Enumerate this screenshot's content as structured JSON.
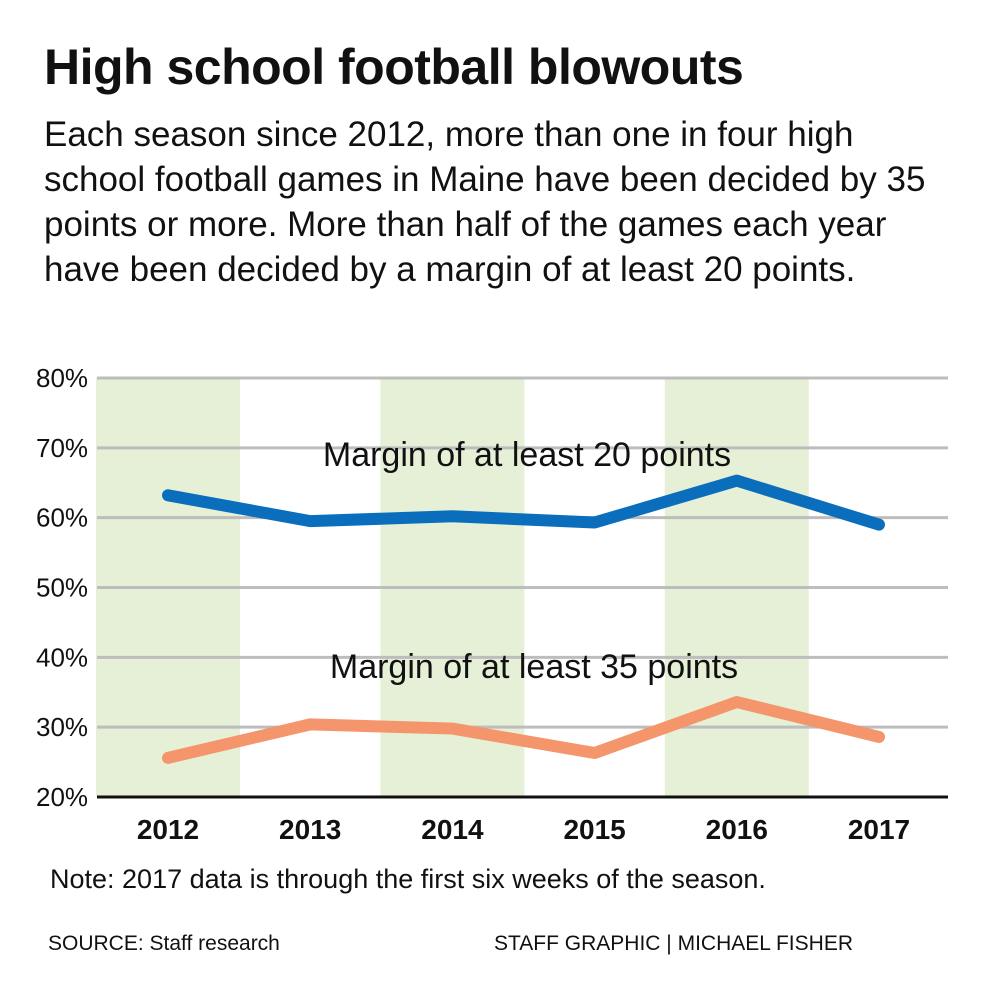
{
  "header": {
    "title": "High school football blowouts",
    "subtitle": "Each season since 2012, more than one in four high school football games in Maine have been decided by 35 points or more. More than half of the games each year have been decided by a margin of at least 20 points."
  },
  "footer": {
    "note": "Note: 2017 data is through the first six weeks of the season.",
    "source": "SOURCE: Staff research",
    "credit": "STAFF GRAPHIC | MICHAEL FISHER"
  },
  "chart_data": {
    "type": "line",
    "categories": [
      "2012",
      "2013",
      "2014",
      "2015",
      "2016",
      "2017"
    ],
    "series": [
      {
        "name": "Margin of at least 20 points",
        "values": [
          63.2,
          59.5,
          60.2,
          59.3,
          65.3,
          59.0
        ],
        "color": "#0a6ebd"
      },
      {
        "name": "Margin of at least 35 points",
        "values": [
          25.6,
          30.4,
          29.8,
          26.3,
          33.6,
          28.6
        ],
        "color": "#f4956b"
      }
    ],
    "ylim": [
      20,
      80
    ],
    "yticks": [
      "80%",
      "70%",
      "60%",
      "50%",
      "40%",
      "30%",
      "20%"
    ],
    "grid": true,
    "band_color": "#e6f0d6",
    "grid_color": "#bdbdbd"
  }
}
